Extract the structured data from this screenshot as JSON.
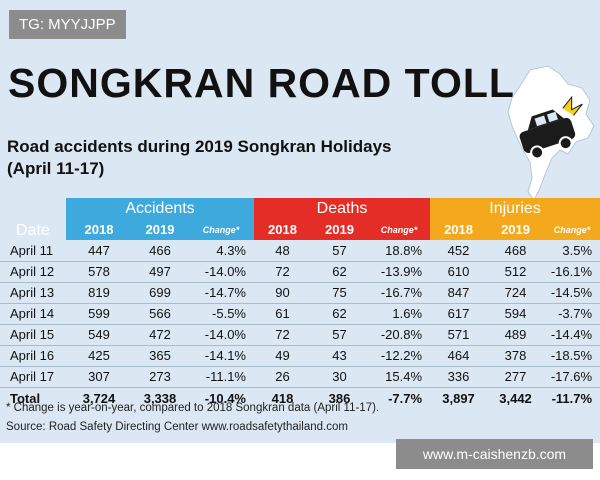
{
  "watermark_tag": "TG: MYYJJPP",
  "title": "SONGKRAN ROAD TOLL",
  "subtitle_line1": "Road accidents during 2019 Songkran Holidays",
  "subtitle_line2": "(April 11-17)",
  "table": {
    "date_header": "Date",
    "groups": [
      "Accidents",
      "Deaths",
      "Injuries"
    ],
    "sub_headers": [
      "2018",
      "2019",
      "Change*"
    ],
    "rows": [
      {
        "date": "April 11",
        "acc": [
          "447",
          "466",
          "4.3%"
        ],
        "dea": [
          "48",
          "57",
          "18.8%"
        ],
        "inj": [
          "452",
          "468",
          "3.5%"
        ]
      },
      {
        "date": "April 12",
        "acc": [
          "578",
          "497",
          "-14.0%"
        ],
        "dea": [
          "72",
          "62",
          "-13.9%"
        ],
        "inj": [
          "610",
          "512",
          "-16.1%"
        ]
      },
      {
        "date": "April 13",
        "acc": [
          "819",
          "699",
          "-14.7%"
        ],
        "dea": [
          "90",
          "75",
          "-16.7%"
        ],
        "inj": [
          "847",
          "724",
          "-14.5%"
        ]
      },
      {
        "date": "April 14",
        "acc": [
          "599",
          "566",
          "-5.5%"
        ],
        "dea": [
          "61",
          "62",
          "1.6%"
        ],
        "inj": [
          "617",
          "594",
          "-3.7%"
        ]
      },
      {
        "date": "April 15",
        "acc": [
          "549",
          "472",
          "-14.0%"
        ],
        "dea": [
          "72",
          "57",
          "-20.8%"
        ],
        "inj": [
          "571",
          "489",
          "-14.4%"
        ]
      },
      {
        "date": "April 16",
        "acc": [
          "425",
          "365",
          "-14.1%"
        ],
        "dea": [
          "49",
          "43",
          "-12.2%"
        ],
        "inj": [
          "464",
          "378",
          "-18.5%"
        ]
      },
      {
        "date": "April 17",
        "acc": [
          "307",
          "273",
          "-11.1%"
        ],
        "dea": [
          "26",
          "30",
          "15.4%"
        ],
        "inj": [
          "336",
          "277",
          "-17.6%"
        ]
      }
    ],
    "total": {
      "label": "Total",
      "acc": [
        "3,724",
        "3,338",
        "-10.4%"
      ],
      "dea": [
        "418",
        "386",
        "-7.7%"
      ],
      "inj": [
        "3,897",
        "3,442",
        "-11.7%"
      ]
    }
  },
  "footnote": "* Change is year-on-year, compared to 2018 Songkran data (April 11-17).",
  "source": "Source: Road Safety Directing Center www.roadsafetythailand.com",
  "url_watermark": "www.m-caishenzb.com",
  "colors": {
    "background": "#dbe8f3",
    "accidents": "#3ea9dd",
    "deaths": "#e52d27",
    "injuries": "#f4a81b"
  },
  "icons": [
    "thailand-map-icon",
    "crashed-car-icon"
  ]
}
